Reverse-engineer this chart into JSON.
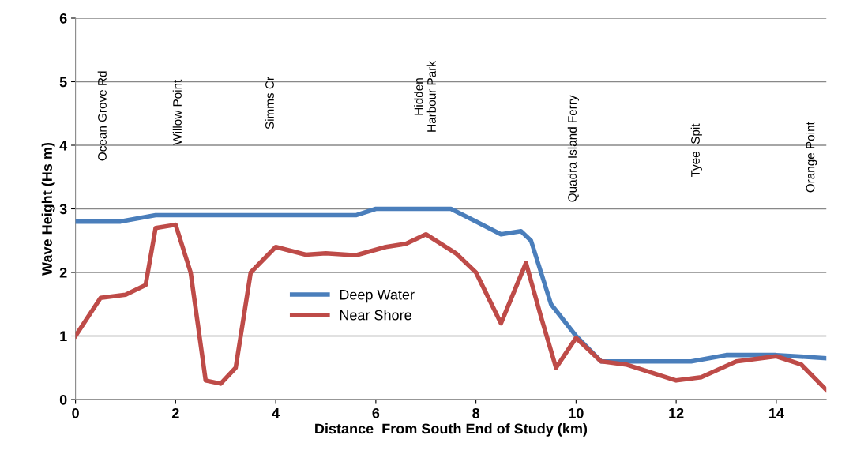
{
  "chart_data": {
    "type": "line",
    "xlabel": "Distance  From South End of Study (km)",
    "ylabel": "Wave Height (Hs m)",
    "xlim": [
      0,
      15
    ],
    "xticks": [
      0,
      2,
      4,
      6,
      8,
      10,
      12,
      14
    ],
    "ylim": [
      0,
      6
    ],
    "yticks": [
      0,
      1,
      2,
      3,
      4,
      5,
      6
    ],
    "grid": "y",
    "legend": "center",
    "marker": "none",
    "line_style": "solid",
    "series": [
      {
        "name": "Deep Water",
        "color": "#4a7ebb",
        "x": [
          0,
          0.9,
          1.6,
          5.6,
          6.0,
          7.0,
          7.5,
          8.0,
          8.5,
          8.9,
          9.1,
          9.5,
          10,
          10.5,
          11,
          12.3,
          13,
          14,
          15
        ],
        "values": [
          2.8,
          2.8,
          2.9,
          2.9,
          3.0,
          3.0,
          3.0,
          2.8,
          2.6,
          2.65,
          2.5,
          1.5,
          1.0,
          0.6,
          0.6,
          0.6,
          0.7,
          0.7,
          0.65
        ]
      },
      {
        "name": "Near Shore",
        "color": "#be4b48",
        "x": [
          0,
          0.5,
          1.0,
          1.4,
          1.6,
          2.0,
          2.3,
          2.6,
          2.9,
          3.2,
          3.5,
          4.0,
          4.6,
          5.0,
          5.6,
          6.2,
          6.6,
          7.0,
          7.6,
          8.0,
          8.5,
          9.0,
          9.3,
          9.6,
          10.0,
          10.5,
          11,
          12,
          12.5,
          13.2,
          14,
          14.5,
          15
        ],
        "values": [
          1.0,
          1.6,
          1.65,
          1.8,
          2.7,
          2.75,
          2.0,
          0.3,
          0.25,
          0.5,
          2.0,
          2.4,
          2.28,
          2.3,
          2.27,
          2.4,
          2.45,
          2.6,
          2.3,
          2.0,
          1.2,
          2.15,
          1.3,
          0.5,
          0.97,
          0.6,
          0.55,
          0.3,
          0.35,
          0.6,
          0.68,
          0.55,
          0.15
        ]
      }
    ],
    "annotations": [
      "Ocean Grove Rd",
      "Willow Point",
      "Simms Cr",
      "Hidden\nHarbour Park",
      "Quadra Island Ferry",
      "Tyee  Spit",
      "Orange Point"
    ]
  }
}
